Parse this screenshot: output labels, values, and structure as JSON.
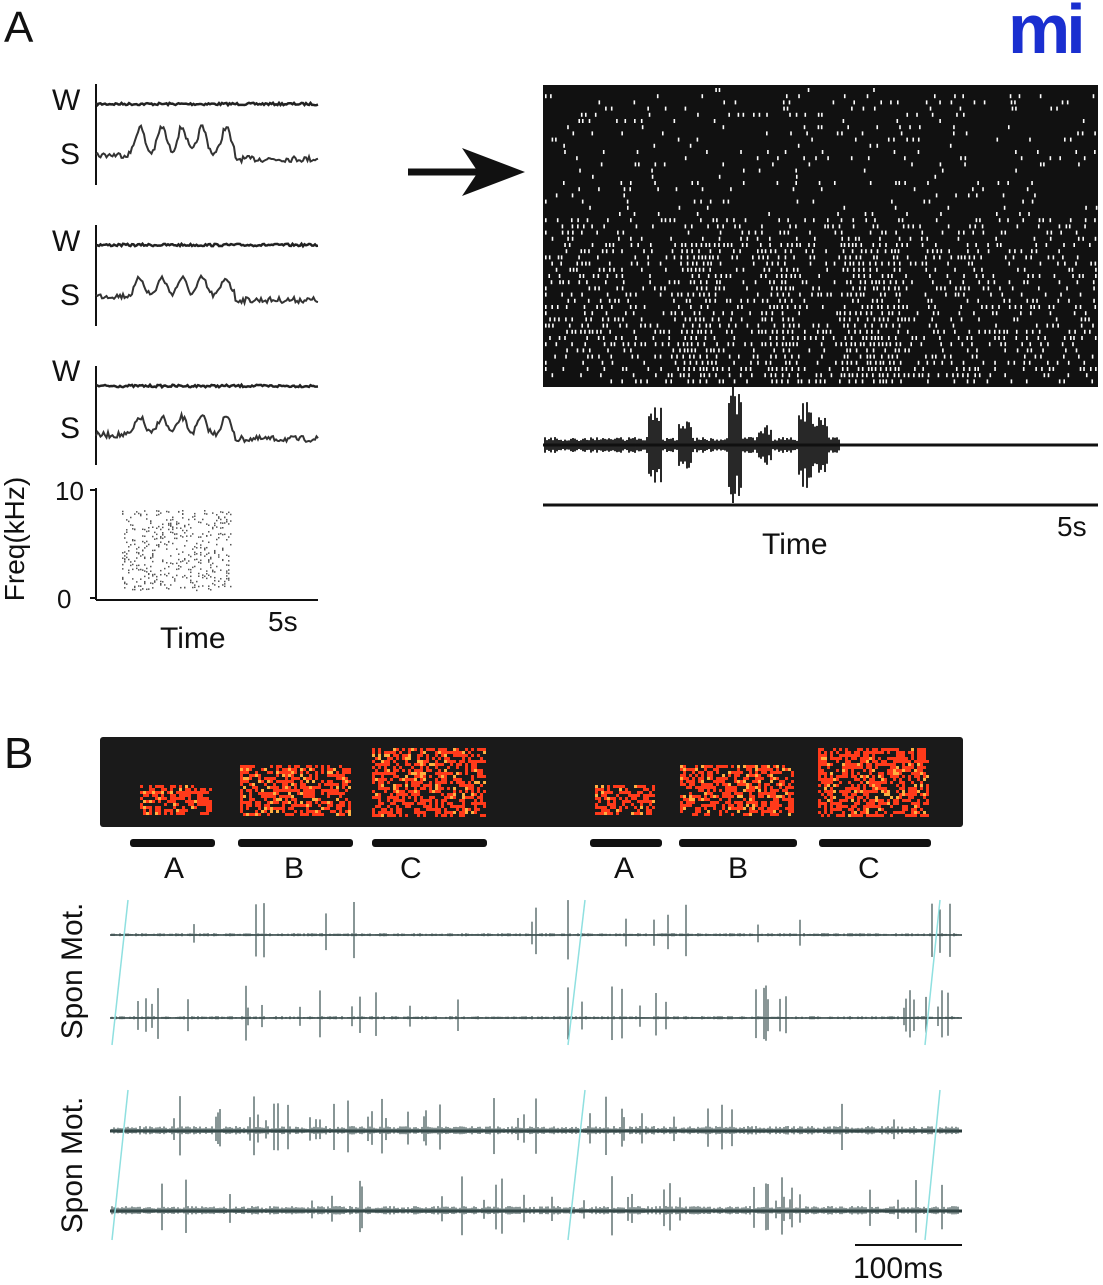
{
  "logo": {
    "text": "mi",
    "color": "#1a2fd0"
  },
  "panel_a": {
    "label": "A",
    "trace_labels": [
      {
        "w": "W",
        "s": "S"
      },
      {
        "w": "W",
        "s": "S"
      },
      {
        "w": "W",
        "s": "S"
      }
    ],
    "spectrogram": {
      "ylabel": "Freq(kHz)",
      "ytick_max": "10",
      "ytick_min": "0",
      "xlabel": "Time",
      "xscale": "5s"
    },
    "raster": {
      "xlabel": "Time",
      "xscale": "5s"
    }
  },
  "panel_b": {
    "label": "B",
    "syllables": [
      "A",
      "B",
      "C",
      "A",
      "B",
      "C"
    ],
    "row_labels": [
      "Spon Mot.",
      "Spon Mot."
    ],
    "scale_bar": "100ms",
    "colors": {
      "spectrogram_bg": "#1a1a1a",
      "spectrogram_fg": "#ff3a1a",
      "trace": "#2a3a3a",
      "marker": "#8fe0e0"
    }
  }
}
